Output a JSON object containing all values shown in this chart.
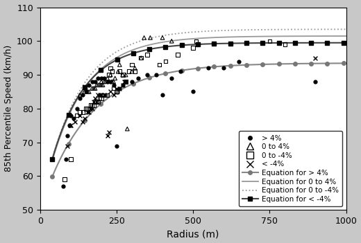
{
  "title": "",
  "xlabel": "Radius (m)",
  "ylabel": "85th Percentile Speed (km/h)",
  "xlim": [
    0,
    1000
  ],
  "ylim": [
    50,
    110
  ],
  "xticks": [
    0,
    250,
    500,
    750,
    1000
  ],
  "yticks": [
    50,
    60,
    70,
    80,
    90,
    100,
    110
  ],
  "scatter_gt4": {
    "R": [
      75,
      85,
      90,
      95,
      100,
      110,
      120,
      130,
      140,
      150,
      160,
      170,
      180,
      190,
      200,
      210,
      220,
      230,
      240,
      250,
      260,
      270,
      280,
      300,
      320,
      350,
      380,
      400,
      430,
      460,
      500,
      550,
      600,
      650,
      900
    ],
    "V": [
      57,
      65,
      72,
      75,
      78,
      77,
      80,
      83,
      84,
      85,
      87,
      88,
      88,
      89,
      89,
      89,
      88,
      88,
      87,
      69,
      86,
      87,
      88,
      88,
      89,
      90,
      90,
      84,
      89,
      91,
      85,
      92,
      92,
      94,
      88
    ]
  },
  "scatter_0to4": {
    "R": [
      100,
      130,
      145,
      155,
      160,
      170,
      175,
      180,
      185,
      190,
      195,
      200,
      200,
      205,
      210,
      215,
      220,
      230,
      235,
      240,
      245,
      255,
      260,
      270,
      280,
      285,
      300,
      310,
      330,
      340,
      360,
      400,
      430
    ],
    "V": [
      75,
      84,
      85,
      85,
      85,
      86,
      86,
      86,
      87,
      87,
      87,
      87,
      88,
      87,
      88,
      88,
      89,
      90,
      88,
      88,
      89,
      91,
      93,
      90,
      90,
      74,
      91,
      92,
      95,
      101,
      101,
      101,
      100
    ]
  },
  "scatter_0toneg4": {
    "R": [
      80,
      100,
      120,
      130,
      140,
      150,
      155,
      160,
      165,
      170,
      175,
      180,
      185,
      190,
      195,
      200,
      205,
      210,
      215,
      220,
      225,
      230,
      235,
      240,
      250,
      260,
      270,
      280,
      290,
      300,
      310,
      330,
      350,
      390,
      410,
      450,
      500,
      510,
      750,
      800
    ],
    "V": [
      59,
      65,
      78,
      79,
      79,
      80,
      80,
      80,
      81,
      81,
      81,
      82,
      82,
      82,
      83,
      83,
      84,
      84,
      84,
      84,
      90,
      92,
      91,
      86,
      85,
      91,
      90,
      88,
      91,
      93,
      91,
      95,
      96,
      93,
      94,
      96,
      98,
      100,
      100,
      99
    ]
  },
  "scatter_ltneg4": {
    "R": [
      90,
      100,
      115,
      130,
      140,
      145,
      155,
      160,
      165,
      170,
      175,
      180,
      185,
      190,
      195,
      200,
      210,
      220,
      225,
      230,
      240,
      250,
      260,
      270,
      275,
      900
    ],
    "V": [
      69,
      75,
      76,
      78,
      76,
      77,
      79,
      79,
      80,
      80,
      82,
      83,
      82,
      84,
      84,
      84,
      84,
      72,
      73,
      85,
      84,
      86,
      86,
      87,
      88,
      95
    ]
  },
  "eq_gt4": {
    "vmax": 93.5,
    "k": 155
  },
  "eq_0to4": {
    "vmax": 101.5,
    "k": 120
  },
  "eq_0toneg4": {
    "vmax": 103.5,
    "k": 120
  },
  "eq_ltneg4": {
    "vmax": 99.5,
    "k": 110
  },
  "fig_bg": "#c8c8c8",
  "ax_bg": "#ffffff",
  "legend_fontsize": 7.5
}
